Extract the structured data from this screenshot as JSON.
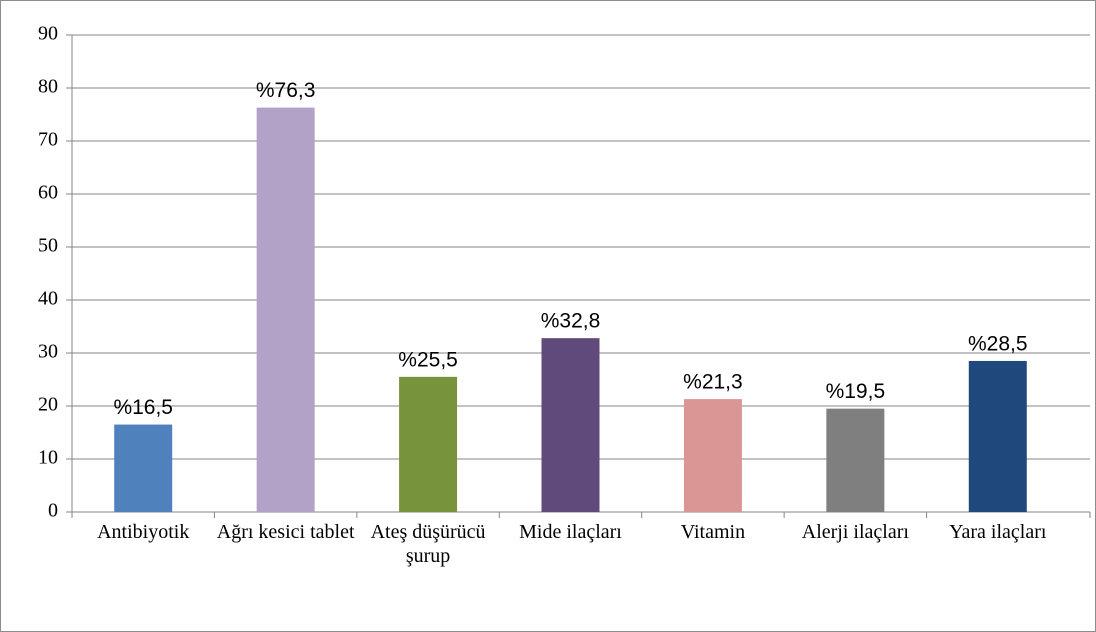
{
  "chart_data": {
    "type": "bar",
    "categories": [
      "Antibiyotik",
      "Ağrı kesici tablet",
      "Ateş düşürücü şurup",
      "Mide ilaçları",
      "Vitamin",
      "Alerji ilaçları",
      "Yara ilaçları"
    ],
    "values": [
      16.5,
      76.3,
      25.5,
      32.8,
      21.3,
      19.5,
      28.5
    ],
    "value_labels": [
      "%16,5",
      "%76,3",
      "%25,5",
      "%32,8",
      "%21,3",
      "%19,5",
      "%28,5"
    ],
    "colors": [
      "#4f81bd",
      "#b2a2c7",
      "#77933c",
      "#604a7b",
      "#d99694",
      "#7f7f7f",
      "#1f497d"
    ],
    "ylim": [
      0,
      90
    ],
    "yticks": [
      0,
      10,
      20,
      30,
      40,
      50,
      60,
      70,
      80,
      90
    ],
    "grid": true
  }
}
